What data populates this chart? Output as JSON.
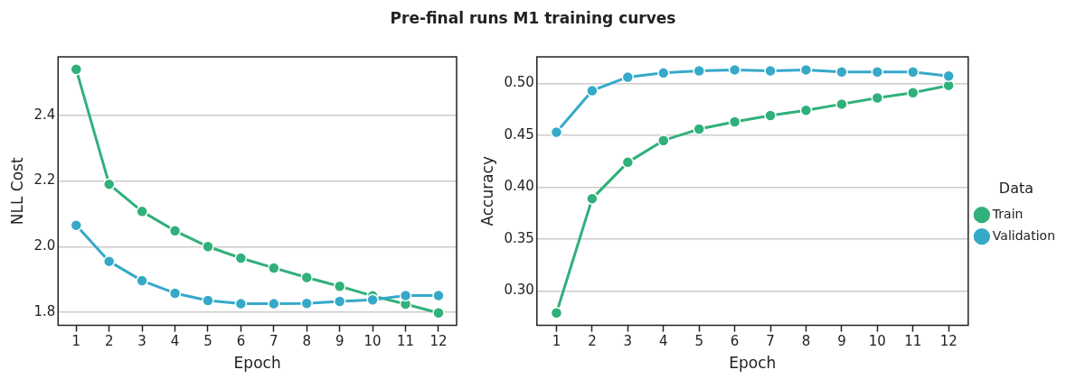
{
  "chart_data": [
    {
      "type": "line",
      "title": "Pre-final runs M1 training curves",
      "xlabel": "Epoch",
      "ylabel": "NLL Cost",
      "x": [
        1,
        2,
        3,
        4,
        5,
        6,
        7,
        8,
        9,
        10,
        11,
        12
      ],
      "series": [
        {
          "color": "#30b07a",
          "values": [
            2.54,
            2.19,
            2.107,
            2.048,
            2.0,
            1.965,
            1.935,
            1.906,
            1.879,
            1.85,
            1.825,
            1.798
          ]
        },
        {
          "color": "#36a9c9",
          "values": [
            2.065,
            1.955,
            1.896,
            1.858,
            1.836,
            1.826,
            1.826,
            1.827,
            1.833,
            1.838,
            1.851,
            1.851
          ]
        }
      ],
      "xlim": [
        0.45,
        12.55
      ],
      "xticks": [
        1,
        2,
        3,
        4,
        5,
        6,
        7,
        8,
        9,
        10,
        11,
        12
      ],
      "ylim": [
        1.76,
        2.578
      ],
      "yticks": [
        1.8,
        {
          "value": 2.0,
          "label": "2.0"
        },
        2.2,
        2.4
      ],
      "grid": "y",
      "legend": false,
      "marker": "circle",
      "line_style": "solid"
    },
    {
      "type": "line",
      "xlabel": "Epoch",
      "ylabel": "Accuracy",
      "legend_title": "Data",
      "x": [
        1,
        2,
        3,
        4,
        5,
        6,
        7,
        8,
        9,
        10,
        11,
        12
      ],
      "series": [
        {
          "name": "Train",
          "color": "#30b07a",
          "values": [
            0.279,
            0.389,
            0.424,
            0.445,
            0.456,
            0.463,
            0.469,
            0.474,
            0.48,
            0.486,
            0.491,
            0.498
          ]
        },
        {
          "name": "Validation",
          "color": "#36a9c9",
          "values": [
            0.453,
            0.493,
            0.506,
            0.51,
            0.512,
            0.513,
            0.512,
            0.513,
            0.511,
            0.511,
            0.511,
            0.507
          ]
        }
      ],
      "xlim": [
        0.45,
        12.55
      ],
      "xticks": [
        1,
        2,
        3,
        4,
        5,
        6,
        7,
        8,
        9,
        10,
        11,
        12
      ],
      "ylim": [
        0.267,
        0.5255
      ],
      "yticks": [
        {
          "value": 0.3,
          "label": "0.30"
        },
        {
          "value": 0.35,
          "label": "0.35"
        },
        {
          "value": 0.4,
          "label": "0.40"
        },
        {
          "value": 0.45,
          "label": "0.45"
        },
        {
          "value": 0.5,
          "label": "0.50"
        }
      ],
      "grid": "y",
      "legend": "right",
      "marker": "circle",
      "line_style": "solid"
    }
  ]
}
